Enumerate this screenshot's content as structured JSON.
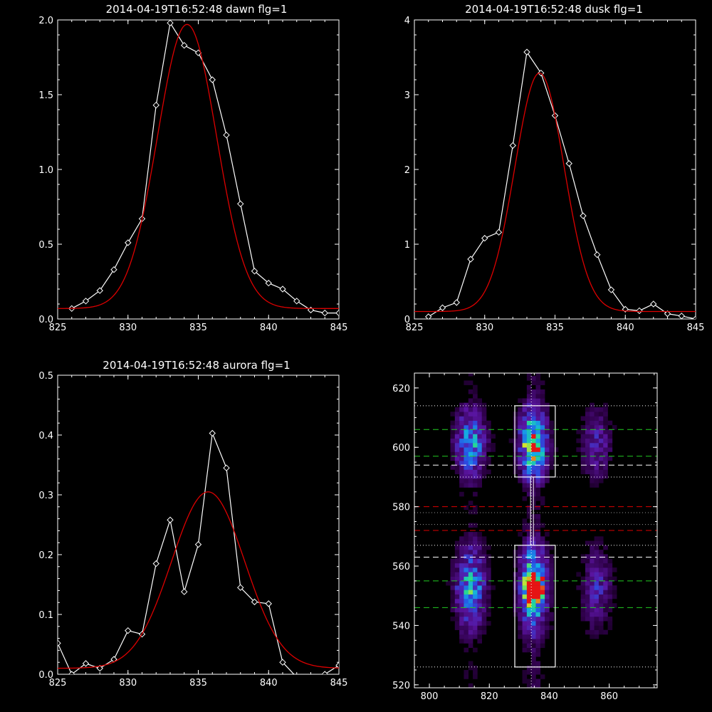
{
  "chart_data": [
    {
      "type": "line",
      "title": "2014-04-19T16:52:48 dawn flg=1",
      "xlim": [
        825,
        845
      ],
      "ylim": [
        0,
        2.0
      ],
      "xticks": [
        825,
        830,
        835,
        840,
        845
      ],
      "yticks": [
        0.0,
        0.5,
        1.0,
        1.5,
        2.0
      ],
      "ytick_labels": [
        "0.0",
        "0.5",
        "1.0",
        "1.5",
        "2.0"
      ],
      "series": [
        {
          "color": "#ffffff",
          "marker": "diamond",
          "x": [
            826,
            827,
            828,
            829,
            830,
            831,
            832,
            833,
            834,
            835,
            836,
            837,
            838,
            839,
            840,
            841,
            842,
            843,
            844,
            845
          ],
          "y": [
            0.07,
            0.12,
            0.19,
            0.33,
            0.51,
            0.67,
            1.43,
            1.98,
            1.83,
            1.78,
            1.6,
            1.23,
            0.77,
            0.32,
            0.24,
            0.2,
            0.12,
            0.06,
            0.04,
            0.04
          ]
        },
        {
          "color": "#dd0000",
          "fit": "gauss",
          "amp": 1.9,
          "center": 834.2,
          "sigma": 2.1,
          "base": 0.07
        }
      ]
    },
    {
      "type": "line",
      "title": "2014-04-19T16:52:48 dusk flg=1",
      "xlim": [
        825,
        845
      ],
      "ylim": [
        0,
        4
      ],
      "xticks": [
        825,
        830,
        835,
        840,
        845
      ],
      "yticks": [
        0,
        1,
        2,
        3,
        4
      ],
      "ytick_labels": [
        "0",
        "1",
        "2",
        "3",
        "4"
      ],
      "series": [
        {
          "color": "#ffffff",
          "marker": "diamond",
          "x": [
            826,
            827,
            828,
            829,
            830,
            831,
            832,
            833,
            834,
            835,
            836,
            837,
            838,
            839,
            840,
            841,
            842,
            843,
            844,
            845
          ],
          "y": [
            0.03,
            0.15,
            0.22,
            0.8,
            1.08,
            1.16,
            2.32,
            3.57,
            3.29,
            2.72,
            2.08,
            1.38,
            0.86,
            0.39,
            0.13,
            0.11,
            0.2,
            0.07,
            0.04,
            0.0
          ]
        },
        {
          "color": "#dd0000",
          "fit": "gauss",
          "amp": 3.19,
          "center": 833.9,
          "sigma": 1.75,
          "base": 0.1
        }
      ]
    },
    {
      "type": "line",
      "title": "2014-04-19T16:52:48 aurora flg=1",
      "xlim": [
        825,
        845
      ],
      "ylim": [
        0,
        0.5
      ],
      "xticks": [
        825,
        830,
        835,
        840,
        845
      ],
      "yticks": [
        0.0,
        0.1,
        0.2,
        0.3,
        0.4,
        0.5
      ],
      "ytick_labels": [
        "0.0",
        "0.1",
        "0.2",
        "0.3",
        "0.4",
        "0.5"
      ],
      "series": [
        {
          "color": "#ffffff",
          "marker": "diamond",
          "x": [
            825,
            826,
            827,
            828,
            829,
            830,
            831,
            832,
            833,
            834,
            835,
            836,
            837,
            838,
            839,
            840,
            841,
            842,
            843,
            844,
            845
          ],
          "y": [
            0.052,
            0.0,
            0.018,
            0.01,
            0.025,
            0.073,
            0.067,
            0.185,
            0.258,
            0.138,
            0.217,
            0.403,
            0.345,
            0.145,
            0.121,
            0.118,
            0.02,
            -0.005,
            -0.01,
            0.0,
            0.015
          ]
        },
        {
          "color": "#dd0000",
          "fit": "gauss",
          "amp": 0.295,
          "center": 835.7,
          "sigma": 2.6,
          "base": 0.01
        }
      ]
    },
    {
      "type": "heatmap",
      "xlim": [
        795,
        876
      ],
      "ylim": [
        519,
        625
      ],
      "xticks": [
        800,
        820,
        840,
        860
      ],
      "yticks": [
        520,
        540,
        560,
        580,
        600,
        620
      ],
      "colormap": "rainbow-on-black",
      "emission_columns_x": [
        813,
        834,
        855
      ],
      "emission_bands_y": [
        {
          "y0": 589,
          "y1": 612
        },
        {
          "y0": 537,
          "y1": 567
        }
      ],
      "vertical_dotted_x": 834,
      "boxes": [
        {
          "x0": 828.5,
          "x1": 842,
          "y0": 590,
          "y1": 614
        },
        {
          "x0": 828.5,
          "x1": 842,
          "y0": 526,
          "y1": 567
        }
      ],
      "dotted_white_lines_y": [
        614,
        590,
        567,
        526
      ],
      "dashed_green_lines_y": [
        606,
        597,
        555,
        546
      ],
      "dashed_white_lines_y": [
        594,
        563
      ],
      "dashed_red_lines_y": [
        580,
        572
      ],
      "dotted_gray_lines_y": [
        578,
        574
      ]
    }
  ]
}
